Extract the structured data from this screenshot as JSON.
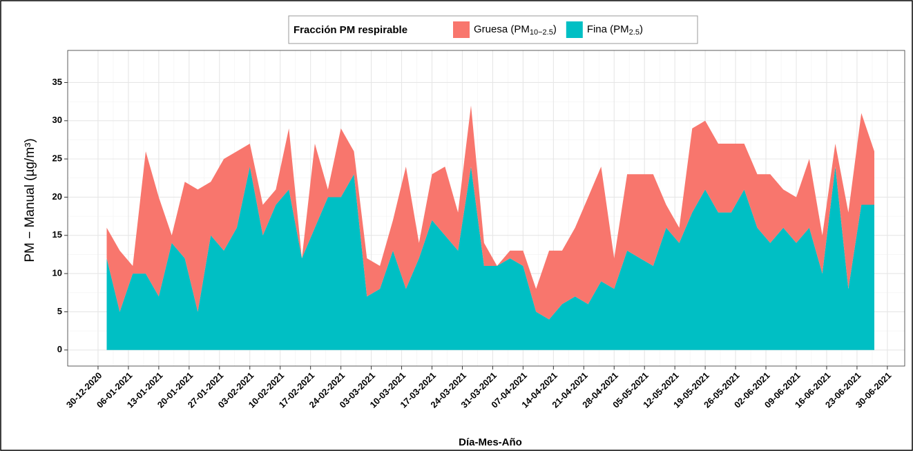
{
  "chart_data": {
    "type": "stacked_area",
    "legend_title": "Fracción PM respirable",
    "ylabel": "PM − Manual (µg/m³)",
    "xlabel": "Día-Mes-Año",
    "legend_position": "top",
    "grid": true,
    "x": [
      "2021-01-01",
      "2021-01-04",
      "2021-01-07",
      "2021-01-10",
      "2021-01-13",
      "2021-01-16",
      "2021-01-19",
      "2021-01-22",
      "2021-01-25",
      "2021-01-28",
      "2021-01-31",
      "2021-02-03",
      "2021-02-06",
      "2021-02-09",
      "2021-02-12",
      "2021-02-15",
      "2021-02-18",
      "2021-02-21",
      "2021-02-24",
      "2021-02-27",
      "2021-03-02",
      "2021-03-05",
      "2021-03-08",
      "2021-03-11",
      "2021-03-14",
      "2021-03-17",
      "2021-03-20",
      "2021-03-23",
      "2021-03-26",
      "2021-03-29",
      "2021-04-01",
      "2021-04-04",
      "2021-04-07",
      "2021-04-10",
      "2021-04-13",
      "2021-04-16",
      "2021-04-19",
      "2021-04-22",
      "2021-04-25",
      "2021-04-28",
      "2021-05-01",
      "2021-05-04",
      "2021-05-07",
      "2021-05-10",
      "2021-05-13",
      "2021-05-16",
      "2021-05-19",
      "2021-05-22",
      "2021-05-25",
      "2021-05-28",
      "2021-05-31",
      "2021-06-03",
      "2021-06-06",
      "2021-06-09",
      "2021-06-12",
      "2021-06-15",
      "2021-06-18",
      "2021-06-21",
      "2021-06-24",
      "2021-06-27"
    ],
    "series": [
      {
        "name": "Fina (PM2.5)",
        "color": "#00BFC4",
        "values": [
          12,
          5,
          10,
          10,
          7,
          14,
          12,
          5,
          15,
          13,
          16,
          24,
          15,
          19,
          21,
          12,
          16,
          20,
          20,
          23,
          7,
          8,
          13,
          8,
          12,
          17,
          15,
          13,
          24,
          11,
          11,
          12,
          11,
          5,
          4,
          6,
          7,
          6,
          9,
          8,
          13,
          12,
          11,
          16,
          14,
          18,
          21,
          18,
          18,
          21,
          16,
          14,
          16,
          14,
          16,
          10,
          24,
          8,
          19,
          19
        ]
      },
      {
        "name": "Gruesa (PM10−2.5)",
        "color": "#F8766D",
        "values": [
          4,
          8,
          1,
          16,
          13,
          1,
          10,
          16,
          7,
          12,
          10,
          3,
          4,
          2,
          8,
          0,
          11,
          1,
          9,
          3,
          5,
          3,
          4,
          16,
          2,
          6,
          9,
          5,
          8,
          3,
          0,
          1,
          2,
          3,
          9,
          7,
          9,
          14,
          15,
          4,
          10,
          11,
          12,
          3,
          2,
          11,
          9,
          9,
          9,
          6,
          7,
          9,
          5,
          6,
          9,
          5,
          3,
          10,
          12,
          7
        ]
      }
    ],
    "xlim": [
      "2020-12-23",
      "2021-07-04"
    ],
    "xticks": [
      {
        "value": "2020-12-30",
        "label": "30-12-2020"
      },
      {
        "value": "2021-01-06",
        "label": "06-01-2021"
      },
      {
        "value": "2021-01-13",
        "label": "13-01-2021"
      },
      {
        "value": "2021-01-20",
        "label": "20-01-2021"
      },
      {
        "value": "2021-01-27",
        "label": "27-01-2021"
      },
      {
        "value": "2021-02-03",
        "label": "03-02-2021"
      },
      {
        "value": "2021-02-10",
        "label": "10-02-2021"
      },
      {
        "value": "2021-02-17",
        "label": "17-02-2021"
      },
      {
        "value": "2021-02-24",
        "label": "24-02-2021"
      },
      {
        "value": "2021-03-03",
        "label": "03-03-2021"
      },
      {
        "value": "2021-03-10",
        "label": "10-03-2021"
      },
      {
        "value": "2021-03-17",
        "label": "17-03-2021"
      },
      {
        "value": "2021-03-24",
        "label": "24-03-2021"
      },
      {
        "value": "2021-03-31",
        "label": "31-03-2021"
      },
      {
        "value": "2021-04-07",
        "label": "07-04-2021"
      },
      {
        "value": "2021-04-14",
        "label": "14-04-2021"
      },
      {
        "value": "2021-04-21",
        "label": "21-04-2021"
      },
      {
        "value": "2021-04-28",
        "label": "28-04-2021"
      },
      {
        "value": "2021-05-05",
        "label": "05-05-2021"
      },
      {
        "value": "2021-05-12",
        "label": "12-05-2021"
      },
      {
        "value": "2021-05-19",
        "label": "19-05-2021"
      },
      {
        "value": "2021-05-26",
        "label": "26-05-2021"
      },
      {
        "value": "2021-06-02",
        "label": "02-06-2021"
      },
      {
        "value": "2021-06-09",
        "label": "09-06-2021"
      },
      {
        "value": "2021-06-16",
        "label": "16-06-2021"
      },
      {
        "value": "2021-06-23",
        "label": "23-06-2021"
      },
      {
        "value": "2021-06-30",
        "label": "30-06-2021"
      }
    ],
    "ylim": [
      -2.1,
      39.2
    ],
    "yticks": [
      0,
      5,
      10,
      15,
      20,
      25,
      30,
      35
    ]
  }
}
